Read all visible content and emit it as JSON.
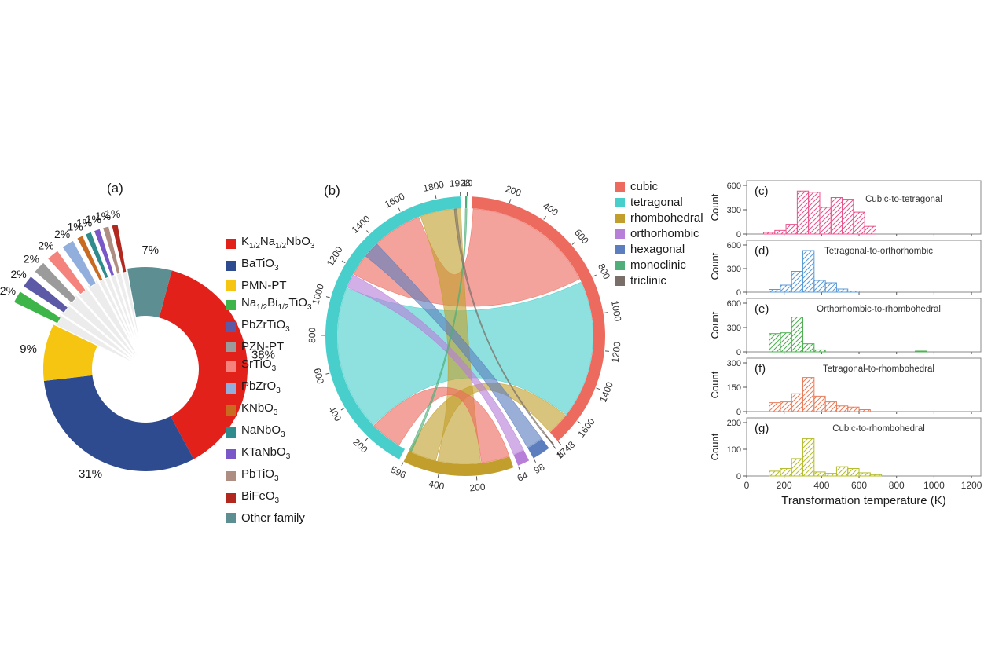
{
  "chart_data": [
    {
      "type": "pie",
      "tag": "(a)",
      "donut": true,
      "start_angle_deg": 15,
      "slices": [
        {
          "label": "K_{1/2}Na_{1/2}NbO_3",
          "pct": 38,
          "color": "#e3211b",
          "exploded": false
        },
        {
          "label": "BaTiO_3",
          "pct": 31,
          "color": "#2f4b8f",
          "exploded": false
        },
        {
          "label": "PMN-PT",
          "pct": 9,
          "color": "#f5c511",
          "exploded": false
        },
        {
          "label": "Na_{1/2}Bi_{1/2}TiO_3",
          "pct": 2,
          "color": "#3db549",
          "exploded": true
        },
        {
          "label": "PbZrTiO_3",
          "pct": 2,
          "color": "#5c5aa6",
          "exploded": true
        },
        {
          "label": "PZN-PT",
          "pct": 2,
          "color": "#9b9b9b",
          "exploded": true
        },
        {
          "label": "SrTiO_3",
          "pct": 2,
          "color": "#f4837d",
          "exploded": true
        },
        {
          "label": "PbZrO_3",
          "pct": 2,
          "color": "#92aedc",
          "exploded": true
        },
        {
          "label": "KNbO_3",
          "pct": 1,
          "color": "#c96a21",
          "exploded": true
        },
        {
          "label": "NaNbO_3",
          "pct": 1,
          "color": "#2f8c8c",
          "exploded": true
        },
        {
          "label": "KTaNbO_3",
          "pct": 1,
          "color": "#7a57c9",
          "exploded": true
        },
        {
          "label": "PbTiO_3",
          "pct": 1,
          "color": "#ae8e83",
          "exploded": true
        },
        {
          "label": "BiFeO_3",
          "pct": 1,
          "color": "#b3281e",
          "exploded": true
        },
        {
          "label": "Other family",
          "pct": 7,
          "color": "#5d8e92",
          "exploded": false
        }
      ]
    },
    {
      "type": "chord",
      "tag": "(b)",
      "tick_step": 200,
      "arcs": [
        {
          "name": "monoclinic",
          "size": 10,
          "color": "#4fae79"
        },
        {
          "name": "cubic",
          "size": 1748,
          "color": "#ec6a5e"
        },
        {
          "name": "triclinic",
          "size": 8,
          "color": "#7a6f68"
        },
        {
          "name": "hexagonal",
          "size": 98,
          "color": "#5c7ebf"
        },
        {
          "name": "orthorhombic",
          "size": 64,
          "color": "#b77fd8"
        },
        {
          "name": "rhombohedral",
          "size": 596,
          "color": "#c29f2d"
        },
        {
          "name": "tetragonal",
          "size": 1928,
          "color": "#49cfcb"
        }
      ],
      "legend": [
        {
          "name": "cubic",
          "color": "#ec6a5e"
        },
        {
          "name": "tetragonal",
          "color": "#49cfcb"
        },
        {
          "name": "rhombohedral",
          "color": "#c29f2d"
        },
        {
          "name": "orthorhombic",
          "color": "#b77fd8"
        },
        {
          "name": "hexagonal",
          "color": "#5c7ebf"
        },
        {
          "name": "monoclinic",
          "color": "#4fae79"
        },
        {
          "name": "triclinic",
          "color": "#7a6f68"
        }
      ],
      "ribbons": [
        {
          "from": {
            "arc": "cubic",
            "a": 10,
            "b": 780
          },
          "to": {
            "arc": "tetragonal",
            "a": 1170,
            "b": 1680
          },
          "color": "#ec6a5e"
        },
        {
          "from": {
            "arc": "tetragonal",
            "a": 230,
            "b": 1080
          },
          "to": {
            "arc": "cubic",
            "a": 800,
            "b": 1610
          },
          "color": "#49cfcb"
        },
        {
          "from": {
            "arc": "tetragonal",
            "a": 1690,
            "b": 1928
          },
          "to": {
            "arc": "rhombohedral",
            "a": 170,
            "b": 420
          },
          "color": "#c29f2d"
        },
        {
          "from": {
            "arc": "cubic",
            "a": 1615,
            "b": 1748
          },
          "to": {
            "arc": "rhombohedral",
            "a": 430,
            "b": 590
          },
          "color": "#c29f2d"
        },
        {
          "from": {
            "arc": "tetragonal",
            "a": 40,
            "b": 225
          },
          "to": {
            "arc": "rhombohedral",
            "a": 0,
            "b": 165
          },
          "color": "#ec6a5e"
        },
        {
          "from": {
            "arc": "orthorhombic",
            "a": 0,
            "b": 64
          },
          "to": {
            "arc": "tetragonal",
            "a": 1085,
            "b": 1165
          },
          "color": "#b77fd8"
        },
        {
          "from": {
            "arc": "hexagonal",
            "a": 0,
            "b": 98
          },
          "to": {
            "arc": "tetragonal",
            "a": 1295,
            "b": 1390
          },
          "color": "#5c7ebf"
        },
        {
          "from": {
            "arc": "monoclinic",
            "a": 0,
            "b": 10
          },
          "to": {
            "arc": "rhombohedral",
            "a": 580,
            "b": 596
          },
          "color": "#4fae79"
        },
        {
          "from": {
            "arc": "triclinic",
            "a": 0,
            "b": 8
          },
          "to": {
            "arc": "tetragonal",
            "a": 1890,
            "b": 1905
          },
          "color": "#7a6f68"
        }
      ]
    },
    {
      "type": "bar",
      "group": "histograms",
      "xlabel": "Transformation temperature (K)",
      "ylabel": "Count",
      "xlim": [
        0,
        1250
      ],
      "x_ticks": [
        0,
        200,
        400,
        600,
        800,
        1000,
        1200
      ],
      "bin_width": 60,
      "panels": [
        {
          "letter": "(c)",
          "title": "Cubic-to-tetragonal",
          "color": "#e8538c",
          "ymax": 600,
          "y_ticks": [
            0,
            300,
            600
          ],
          "bins": [
            [
              90,
              20
            ],
            [
              150,
              45
            ],
            [
              210,
              120
            ],
            [
              270,
              530
            ],
            [
              330,
              515
            ],
            [
              390,
              330
            ],
            [
              450,
              450
            ],
            [
              510,
              430
            ],
            [
              570,
              270
            ],
            [
              630,
              95
            ]
          ]
        },
        {
          "letter": "(d)",
          "title": "Tetragonal-to-orthorhombic",
          "color": "#5b9bd5",
          "ymax": 600,
          "y_ticks": [
            0,
            300,
            600
          ],
          "bins": [
            [
              120,
              35
            ],
            [
              180,
              90
            ],
            [
              240,
              265
            ],
            [
              300,
              530
            ],
            [
              360,
              150
            ],
            [
              420,
              120
            ],
            [
              480,
              40
            ],
            [
              540,
              15
            ]
          ]
        },
        {
          "letter": "(e)",
          "title": "Orthorhombic-to-rhombohedral",
          "color": "#4caf50",
          "ymax": 600,
          "y_ticks": [
            0,
            300,
            600
          ],
          "bins": [
            [
              120,
              225
            ],
            [
              180,
              235
            ],
            [
              240,
              430
            ],
            [
              300,
              100
            ],
            [
              360,
              25
            ],
            [
              900,
              10
            ]
          ]
        },
        {
          "letter": "(f)",
          "title": "Tetragonal-to-rhombohedral",
          "color": "#e87d5a",
          "ymax": 300,
          "y_ticks": [
            0,
            150,
            300
          ],
          "bins": [
            [
              120,
              55
            ],
            [
              180,
              60
            ],
            [
              240,
              110
            ],
            [
              300,
              210
            ],
            [
              360,
              95
            ],
            [
              420,
              60
            ],
            [
              480,
              35
            ],
            [
              540,
              28
            ],
            [
              600,
              12
            ]
          ]
        },
        {
          "letter": "(g)",
          "title": "Cubic-to-rhombohedral",
          "color": "#b5bd2f",
          "ymax": 200,
          "y_ticks": [
            0,
            100,
            200
          ],
          "bins": [
            [
              120,
              18
            ],
            [
              180,
              28
            ],
            [
              240,
              65
            ],
            [
              300,
              140
            ],
            [
              360,
              15
            ],
            [
              420,
              10
            ],
            [
              480,
              35
            ],
            [
              540,
              28
            ],
            [
              600,
              12
            ],
            [
              660,
              5
            ]
          ]
        }
      ]
    }
  ]
}
